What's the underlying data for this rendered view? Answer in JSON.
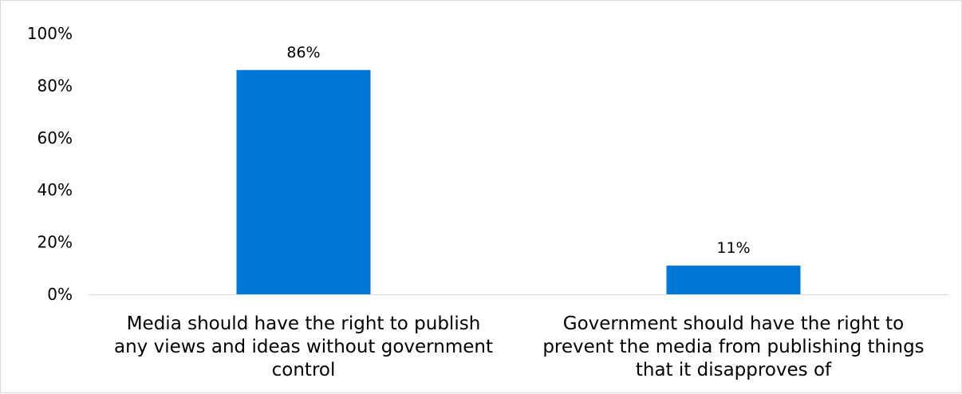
{
  "chart_data": {
    "type": "bar",
    "categories": [
      [
        "Media should have the right to publish",
        "any views and ideas without government",
        "control"
      ],
      [
        "Government should have the right to",
        "prevent the media from publishing things",
        "that it disapproves of"
      ]
    ],
    "values": [
      86,
      11
    ],
    "data_labels": [
      "86%",
      "11%"
    ],
    "title": "",
    "xlabel": "",
    "ylabel": "",
    "ylim": [
      0,
      100
    ],
    "y_ticks": [
      0,
      20,
      40,
      60,
      80,
      100
    ],
    "y_tick_labels": [
      "0%",
      "20%",
      "40%",
      "60%",
      "80%",
      "100%"
    ],
    "grid": false,
    "legend": "none",
    "colors": {
      "bar": "#0078d7",
      "axis": "#d9d9d9",
      "border": "#d9d9d9"
    }
  }
}
